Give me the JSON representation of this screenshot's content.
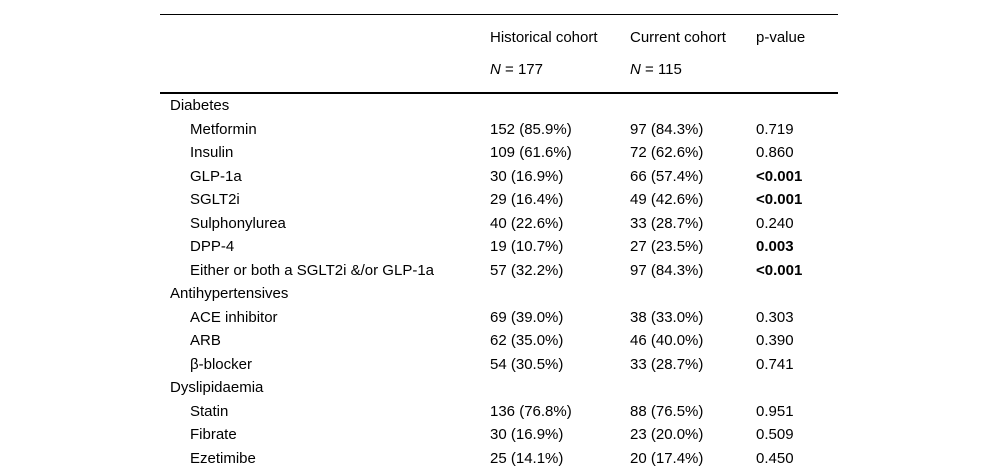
{
  "table": {
    "header": {
      "historical": {
        "title": "Historical cohort",
        "n_italic": "N",
        "n_rest": " = 177"
      },
      "current": {
        "title": "Current cohort",
        "n_italic": "N",
        "n_rest": " = 115"
      },
      "pvalue": {
        "title": "p-value"
      }
    },
    "rows": [
      {
        "type": "section",
        "label": "Diabetes",
        "historical": "",
        "current": "",
        "p": "",
        "p_bold": false
      },
      {
        "type": "item",
        "label": "Metformin",
        "historical": "152 (85.9%)",
        "current": "97 (84.3%)",
        "p": "0.719",
        "p_bold": false
      },
      {
        "type": "item",
        "label": "Insulin",
        "historical": "109 (61.6%)",
        "current": "72 (62.6%)",
        "p": "0.860",
        "p_bold": false
      },
      {
        "type": "item",
        "label": "GLP-1a",
        "historical": "30 (16.9%)",
        "current": "66 (57.4%)",
        "p": "<0.001",
        "p_bold": true
      },
      {
        "type": "item",
        "label": "SGLT2i",
        "historical": "29 (16.4%)",
        "current": "49 (42.6%)",
        "p": "<0.001",
        "p_bold": true
      },
      {
        "type": "item",
        "label": "Sulphonylurea",
        "historical": "40 (22.6%)",
        "current": "33 (28.7%)",
        "p": "0.240",
        "p_bold": false
      },
      {
        "type": "item",
        "label": "DPP-4",
        "historical": "19 (10.7%)",
        "current": "27 (23.5%)",
        "p": "0.003",
        "p_bold": true
      },
      {
        "type": "item",
        "label": "Either or both a SGLT2i &/or GLP-1a",
        "historical": "57 (32.2%)",
        "current": "97 (84.3%)",
        "p": "<0.001",
        "p_bold": true
      },
      {
        "type": "section",
        "label": "Antihypertensives",
        "historical": "",
        "current": "",
        "p": "",
        "p_bold": false
      },
      {
        "type": "item",
        "label": "ACE inhibitor",
        "historical": "69 (39.0%)",
        "current": "38 (33.0%)",
        "p": "0.303",
        "p_bold": false
      },
      {
        "type": "item",
        "label": "ARB",
        "historical": "62 (35.0%)",
        "current": "46 (40.0%)",
        "p": "0.390",
        "p_bold": false
      },
      {
        "type": "item",
        "label": "β-blocker",
        "historical": "54 (30.5%)",
        "current": "33 (28.7%)",
        "p": "0.741",
        "p_bold": false
      },
      {
        "type": "section",
        "label": "Dyslipidaemia",
        "historical": "",
        "current": "",
        "p": "",
        "p_bold": false
      },
      {
        "type": "item",
        "label": "Statin",
        "historical": "136 (76.8%)",
        "current": "88 (76.5%)",
        "p": "0.951",
        "p_bold": false
      },
      {
        "type": "item",
        "label": "Fibrate",
        "historical": "30 (16.9%)",
        "current": "23 (20.0%)",
        "p": "0.509",
        "p_bold": false
      },
      {
        "type": "item",
        "label": "Ezetimibe",
        "historical": "25 (14.1%)",
        "current": "20 (17.4%)",
        "p": "0.450",
        "p_bold": false
      }
    ]
  }
}
